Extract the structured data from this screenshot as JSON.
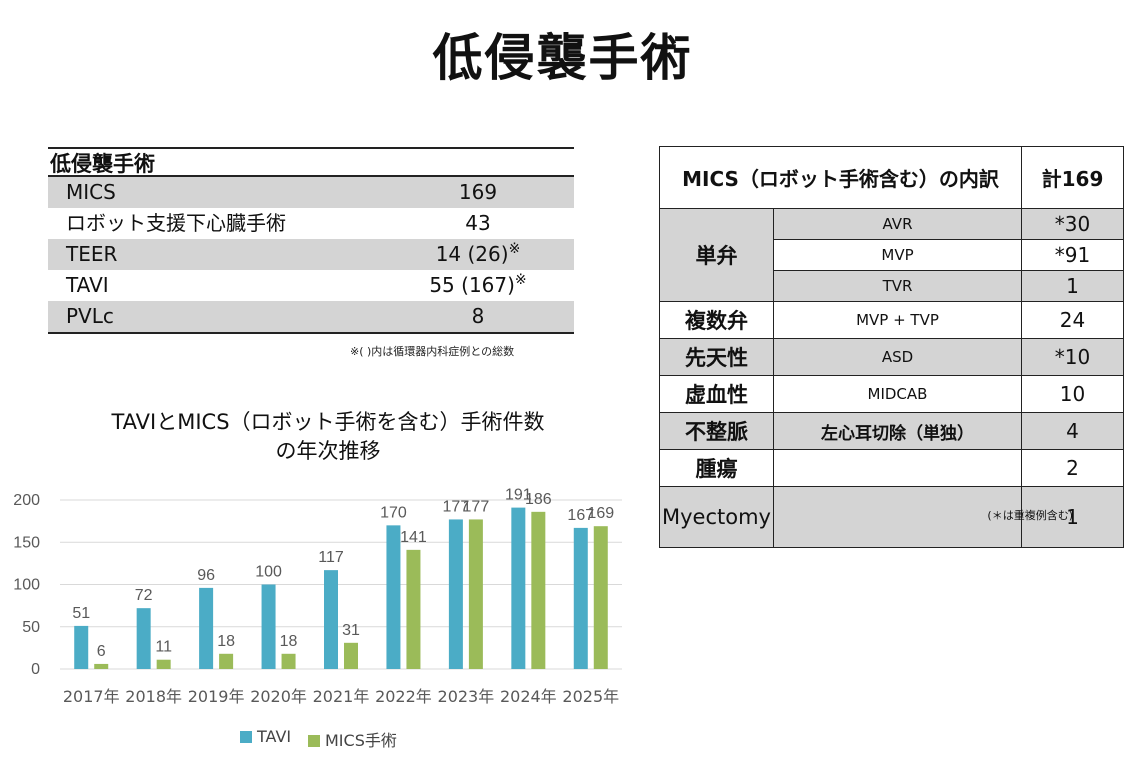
{
  "title": "低侵襲手術",
  "summary_table": {
    "header": "低侵襲手術",
    "rows": [
      {
        "label": "MICS",
        "value": "169",
        "mark": ""
      },
      {
        "label": "ロボット支援下心臓手術",
        "value": "43",
        "mark": ""
      },
      {
        "label": "TEER",
        "value": "14 (26)",
        "mark": "※"
      },
      {
        "label": "TAVI",
        "value": "55 (167)",
        "mark": "※"
      },
      {
        "label": "PVLc",
        "value": "8",
        "mark": ""
      }
    ],
    "note": "※(  )内は循環器内科症例との総数"
  },
  "chart_data": {
    "type": "bar",
    "title": "TAVIとMICS（ロボット手術を含む）手術件数の年次推移",
    "title_line1": "TAVIとMICS（ロボット手術を含む）手術件数",
    "title_line2": "の年次推移",
    "categories": [
      "2017年",
      "2018年",
      "2019年",
      "2020年",
      "2021年",
      "2022年",
      "2023年",
      "2024年",
      "2025年"
    ],
    "series": [
      {
        "name": "TAVI",
        "values": [
          51,
          72,
          96,
          100,
          117,
          170,
          177,
          191,
          167
        ],
        "color": "#4bacc6"
      },
      {
        "name": "MICS手術",
        "values": [
          6,
          11,
          18,
          18,
          31,
          141,
          177,
          186,
          169
        ],
        "color": "#9bbb59"
      }
    ],
    "ylim": [
      0,
      200
    ],
    "yticks": [
      0,
      50,
      100,
      150,
      200
    ],
    "grid": true,
    "legend": "bottom"
  },
  "mics_table": {
    "header_label": "MICS（ロボット手術含む）の内訳",
    "header_total": "計169",
    "rows": [
      {
        "category": "単弁",
        "procedure": "AVR",
        "count": "*30"
      },
      {
        "category": "",
        "procedure": "MVP",
        "count": "*91"
      },
      {
        "category": "",
        "procedure": "TVR",
        "count": "1"
      },
      {
        "category": "複数弁",
        "procedure": "MVP + TVP",
        "count": "24"
      },
      {
        "category": "先天性",
        "procedure": "ASD",
        "count": "*10"
      },
      {
        "category": "虚血性",
        "procedure": "MIDCAB",
        "count": "10"
      },
      {
        "category": "不整脈",
        "procedure": "左心耳切除（単独）",
        "count": "4"
      },
      {
        "category": "腫瘍",
        "procedure": "",
        "count": "2"
      },
      {
        "category": "Myectomy",
        "procedure": "",
        "count": "1"
      }
    ],
    "note": "(＊は重複例含む)"
  }
}
